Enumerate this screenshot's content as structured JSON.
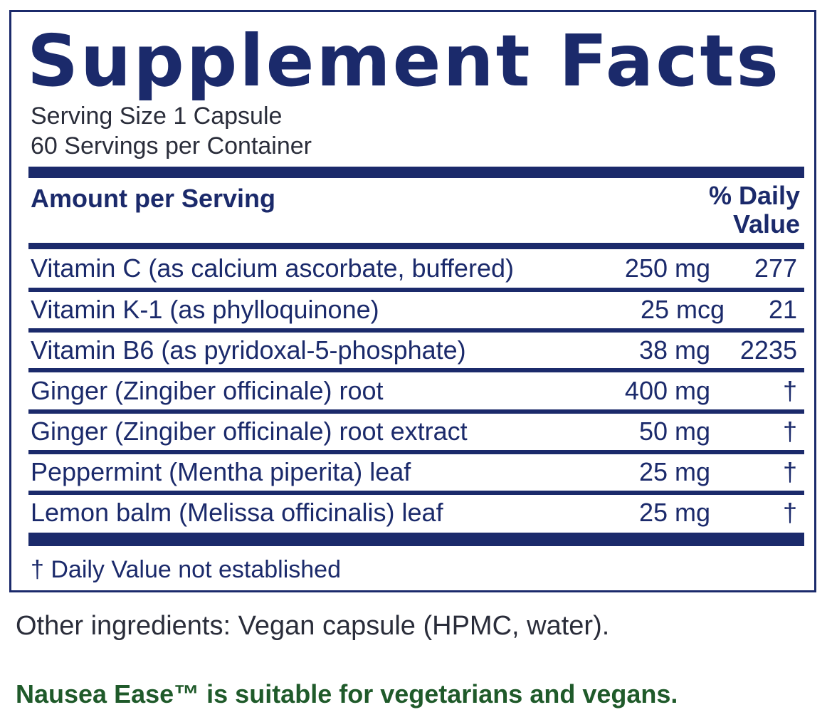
{
  "label": {
    "title": "Supplement Facts",
    "serving_size": "Serving Size 1 Capsule",
    "servings_per_container": "60 Servings per Container",
    "header": {
      "amount_per_serving": "Amount per Serving",
      "daily_value_line1": "% Daily",
      "daily_value_line2": "Value"
    },
    "rows": [
      {
        "name": "Vitamin C (as calcium ascorbate, buffered)",
        "amount": "250 mg",
        "daily_value": "277"
      },
      {
        "name": "Vitamin K-1 (as phylloquinone)",
        "amount": "25 mcg",
        "daily_value": "21"
      },
      {
        "name": "Vitamin B6 (as pyridoxal-5-phosphate)",
        "amount": "38 mg",
        "daily_value": "2235"
      },
      {
        "name": "Ginger (Zingiber officinale) root",
        "amount": "400 mg",
        "daily_value": "†"
      },
      {
        "name": "Ginger (Zingiber officinale) root extract",
        "amount": "50 mg",
        "daily_value": "†"
      },
      {
        "name": "Peppermint (Mentha piperita) leaf",
        "amount": "25 mg",
        "daily_value": "†"
      },
      {
        "name": "Lemon balm (Melissa officinalis) leaf",
        "amount": "25 mg",
        "daily_value": "†"
      }
    ],
    "footnote": "† Daily Value not established"
  },
  "other_ingredients": "Other ingredients: Vegan capsule (HPMC, water).",
  "suitability_note": "Nausea Ease™ is suitable for vegetarians and vegans.",
  "colors": {
    "label_navy": "#1b2a6b",
    "note_green": "#1f5a2a",
    "body_text": "#2a2d3a"
  }
}
